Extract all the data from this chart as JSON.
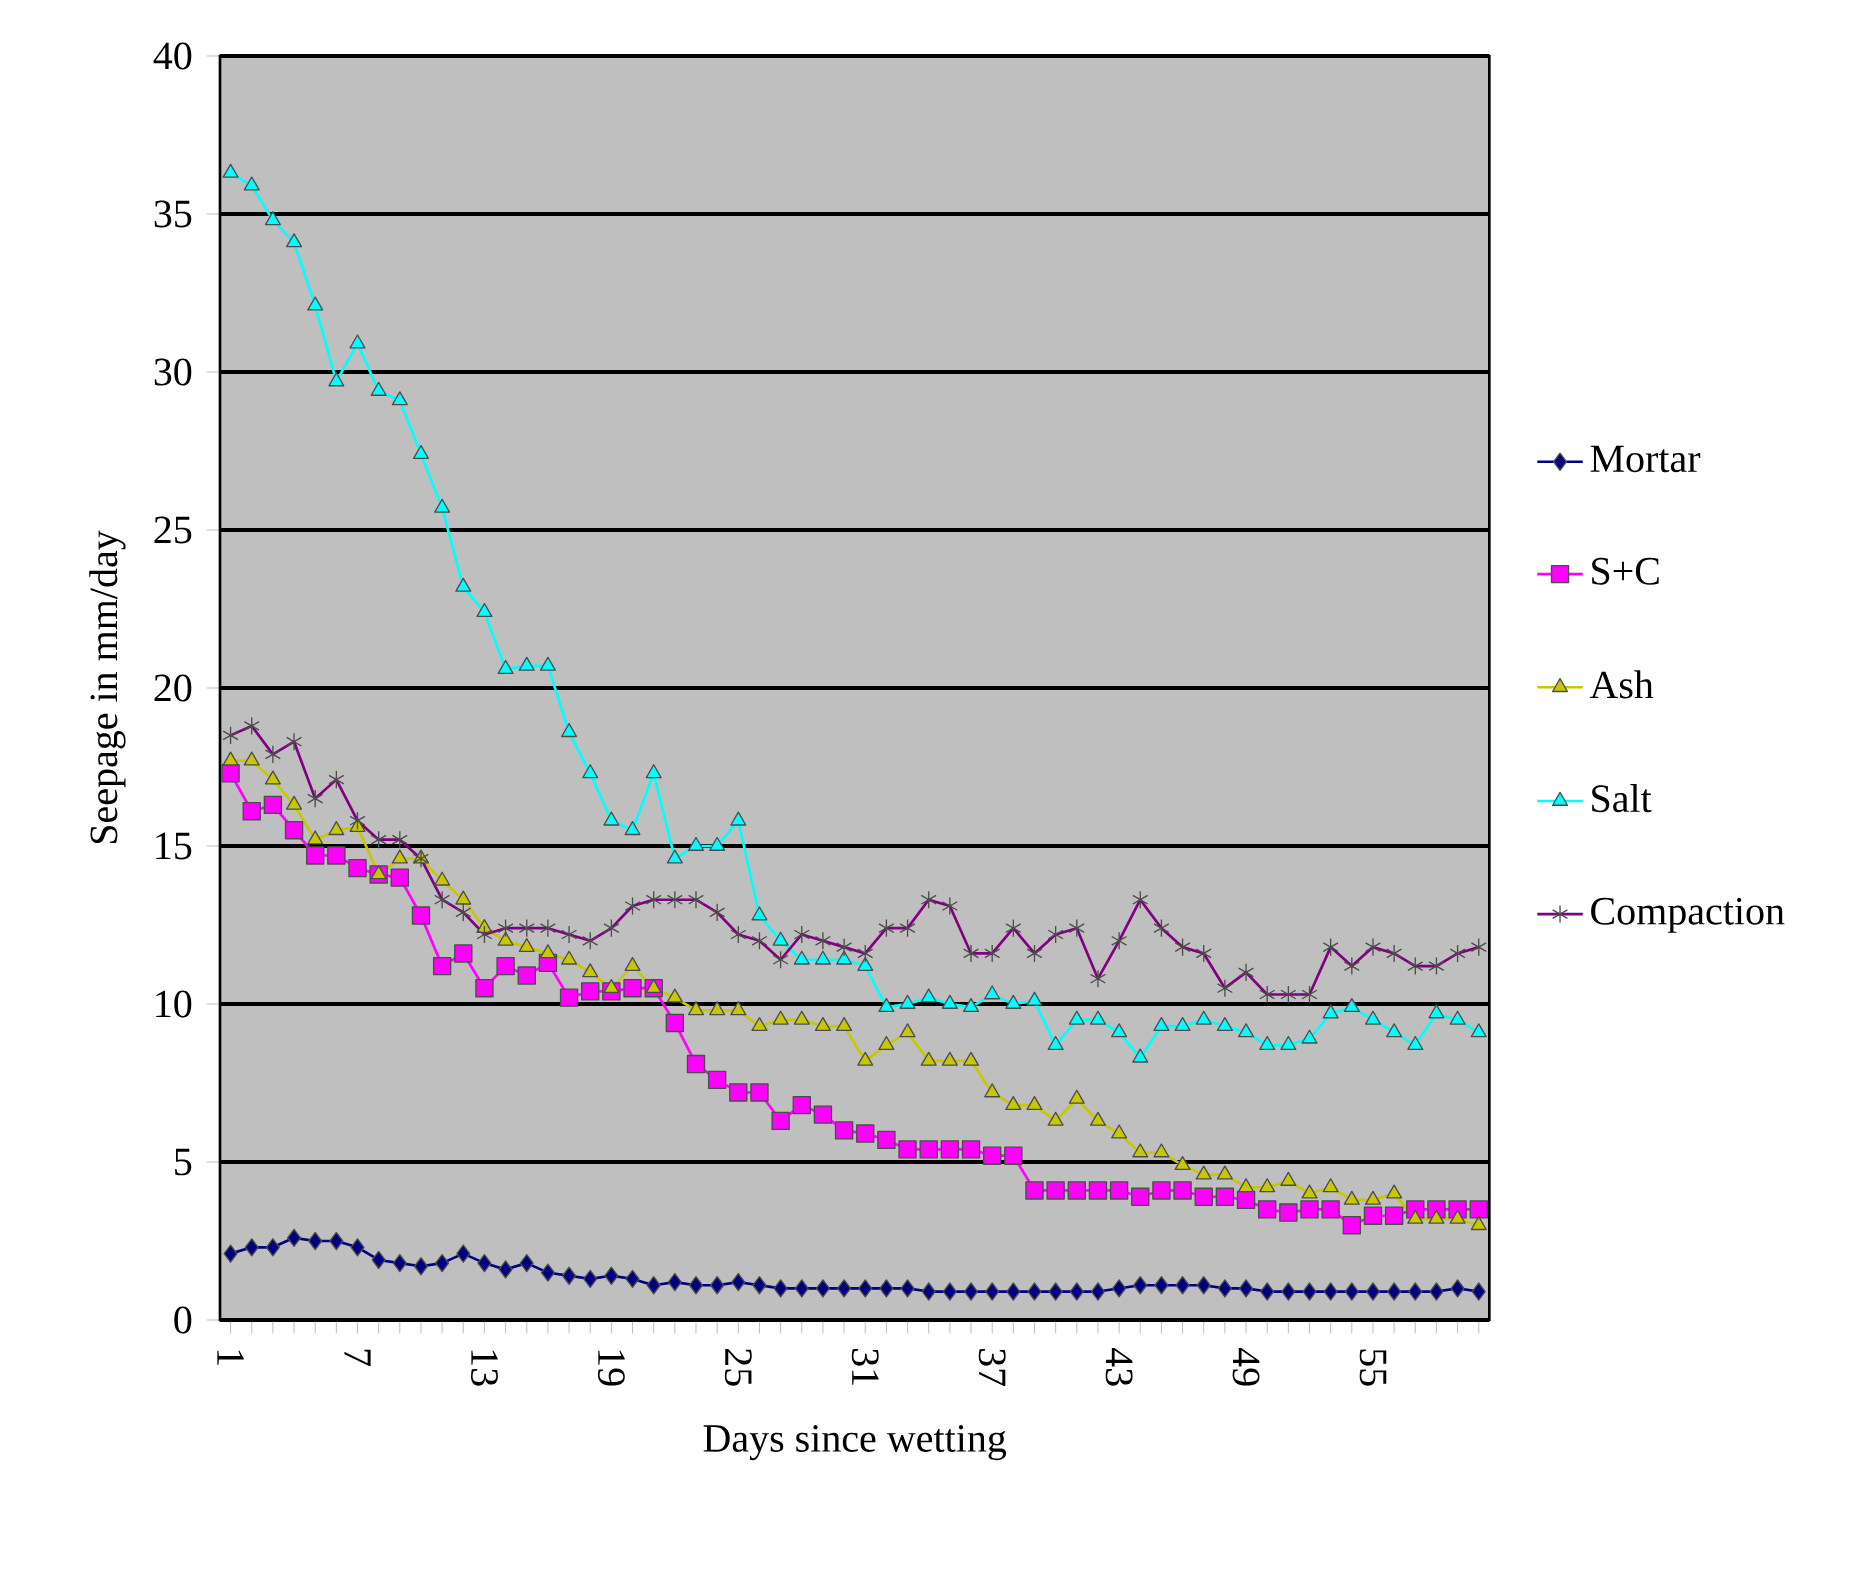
{
  "chart_data": {
    "type": "line",
    "xlabel": "Days since wetting",
    "ylabel": "Seepage in mm/day",
    "categories": [
      "1",
      null,
      null,
      null,
      null,
      null,
      "7",
      null,
      null,
      null,
      null,
      null,
      "13",
      null,
      null,
      null,
      null,
      null,
      "19",
      null,
      null,
      null,
      null,
      null,
      "25",
      null,
      null,
      null,
      null,
      null,
      "31",
      null,
      null,
      null,
      null,
      null,
      "37",
      null,
      null,
      null,
      null,
      null,
      "43",
      null,
      null,
      null,
      null,
      null,
      "49",
      null,
      null,
      null,
      null,
      null,
      "55",
      null,
      null,
      null,
      null,
      null
    ],
    "ylim": [
      0,
      40
    ],
    "yticks": [
      0,
      5,
      10,
      15,
      20,
      25,
      30,
      35,
      40
    ],
    "grid": "y",
    "legend": "right",
    "series": [
      {
        "name": "Mortar",
        "color": "#000080",
        "marker": "diamond",
        "values": [
          2.1,
          2.3,
          2.3,
          2.6,
          2.5,
          2.5,
          2.3,
          1.9,
          1.8,
          1.7,
          1.8,
          2.1,
          1.8,
          1.6,
          1.8,
          1.5,
          1.4,
          1.3,
          1.4,
          1.3,
          1.1,
          1.2,
          1.1,
          1.1,
          1.2,
          1.1,
          1.0,
          1.0,
          1.0,
          1.0,
          1.0,
          1.0,
          1.0,
          0.9,
          0.9,
          0.9,
          0.9,
          0.9,
          0.9,
          0.9,
          0.9,
          0.9,
          1.0,
          1.1,
          1.1,
          1.1,
          1.1,
          1.0,
          1.0,
          0.9,
          0.9,
          0.9,
          0.9,
          0.9,
          0.9,
          0.9,
          0.9,
          0.9,
          1.0,
          0.9
        ]
      },
      {
        "name": "S+C",
        "color": "#ff00ff",
        "marker": "square",
        "values": [
          17.3,
          16.1,
          16.3,
          15.5,
          14.7,
          14.7,
          14.3,
          14.1,
          14.0,
          12.8,
          11.2,
          11.6,
          10.5,
          11.2,
          10.9,
          11.3,
          10.2,
          10.4,
          10.4,
          10.5,
          10.5,
          9.4,
          8.1,
          7.6,
          7.2,
          7.2,
          6.3,
          6.8,
          6.5,
          6.0,
          5.9,
          5.7,
          5.4,
          5.4,
          5.4,
          5.4,
          5.2,
          5.2,
          4.1,
          4.1,
          4.1,
          4.1,
          4.1,
          3.9,
          4.1,
          4.1,
          3.9,
          3.9,
          3.8,
          3.5,
          3.4,
          3.5,
          3.5,
          3.0,
          3.3,
          3.3,
          3.5,
          3.5,
          3.5,
          3.5
        ]
      },
      {
        "name": "Ash",
        "color": "#c8c800",
        "marker": "triangle",
        "values": [
          17.7,
          17.7,
          17.1,
          16.3,
          15.2,
          15.5,
          15.6,
          14.1,
          14.6,
          14.6,
          13.9,
          13.3,
          12.4,
          12.0,
          11.8,
          11.6,
          11.4,
          11.0,
          10.5,
          11.2,
          10.5,
          10.2,
          9.8,
          9.8,
          9.8,
          9.3,
          9.5,
          9.5,
          9.3,
          9.3,
          8.2,
          8.7,
          9.1,
          8.2,
          8.2,
          8.2,
          7.2,
          6.8,
          6.8,
          6.3,
          7.0,
          6.3,
          5.9,
          5.3,
          5.3,
          4.9,
          4.6,
          4.6,
          4.2,
          4.2,
          4.4,
          4.0,
          4.2,
          3.8,
          3.8,
          4.0,
          3.2,
          3.2,
          3.2,
          3.0
        ]
      },
      {
        "name": "Salt",
        "color": "#00ffff",
        "marker": "triangle",
        "values": [
          36.3,
          35.9,
          34.8,
          34.1,
          32.1,
          29.7,
          30.9,
          29.4,
          29.1,
          27.4,
          25.7,
          23.2,
          22.4,
          20.6,
          20.7,
          20.7,
          18.6,
          17.3,
          15.8,
          15.5,
          17.3,
          14.6,
          15.0,
          15.0,
          15.8,
          12.8,
          12.0,
          11.4,
          11.4,
          11.4,
          11.2,
          9.9,
          10.0,
          10.2,
          10.0,
          9.9,
          10.3,
          10.0,
          10.1,
          8.7,
          9.5,
          9.5,
          9.1,
          8.3,
          9.3,
          9.3,
          9.5,
          9.3,
          9.1,
          8.7,
          8.7,
          8.9,
          9.7,
          9.9,
          9.5,
          9.1,
          8.7,
          9.7,
          9.5,
          9.1
        ]
      },
      {
        "name": "Compaction",
        "color": "#800080",
        "marker": "cross",
        "values": [
          18.5,
          18.8,
          17.9,
          18.3,
          16.5,
          17.1,
          15.8,
          15.2,
          15.2,
          14.6,
          13.3,
          12.9,
          12.2,
          12.4,
          12.4,
          12.4,
          12.2,
          12.0,
          12.4,
          13.1,
          13.3,
          13.3,
          13.3,
          12.9,
          12.2,
          12.0,
          11.4,
          12.2,
          12.0,
          11.8,
          11.6,
          12.4,
          12.4,
          13.3,
          13.1,
          11.6,
          11.6,
          12.4,
          11.6,
          12.2,
          12.4,
          10.8,
          12.0,
          13.3,
          12.4,
          11.8,
          11.6,
          10.5,
          11.0,
          10.3,
          10.3,
          10.3,
          11.8,
          11.2,
          11.8,
          11.6,
          11.2,
          11.2,
          11.6,
          11.8
        ]
      }
    ]
  }
}
